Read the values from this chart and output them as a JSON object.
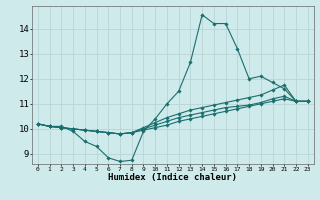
{
  "xlabel": "Humidex (Indice chaleur)",
  "bg_color": "#ceeaea",
  "grid_color": "#b8d4d4",
  "line_color": "#1a6e6e",
  "x_ticks": [
    0,
    1,
    2,
    3,
    4,
    5,
    6,
    7,
    8,
    9,
    10,
    11,
    12,
    13,
    14,
    15,
    16,
    17,
    18,
    19,
    20,
    21,
    22,
    23
  ],
  "y_ticks": [
    9,
    10,
    11,
    12,
    13,
    14
  ],
  "ylim": [
    8.6,
    14.9
  ],
  "xlim": [
    -0.5,
    23.5
  ],
  "curves": [
    {
      "x": [
        0,
        1,
        2,
        3,
        4,
        5,
        6,
        7,
        8,
        9,
        10,
        11,
        12,
        13,
        14,
        15,
        16,
        17,
        18,
        19,
        20,
        21,
        22,
        23
      ],
      "y": [
        10.2,
        10.1,
        10.1,
        9.9,
        9.5,
        9.3,
        8.85,
        8.7,
        8.75,
        9.9,
        10.4,
        11.0,
        11.5,
        12.65,
        14.55,
        14.2,
        14.2,
        13.2,
        12.0,
        12.1,
        11.85,
        11.6,
        11.1,
        11.1
      ]
    },
    {
      "x": [
        0,
        1,
        2,
        3,
        4,
        5,
        6,
        7,
        8,
        9,
        10,
        11,
        12,
        13,
        14,
        15,
        16,
        17,
        18,
        19,
        20,
        21,
        22,
        23
      ],
      "y": [
        10.2,
        10.1,
        10.05,
        10.0,
        9.95,
        9.9,
        9.85,
        9.8,
        9.85,
        10.05,
        10.25,
        10.45,
        10.6,
        10.75,
        10.85,
        10.95,
        11.05,
        11.15,
        11.25,
        11.35,
        11.55,
        11.75,
        11.1,
        11.1
      ]
    },
    {
      "x": [
        0,
        1,
        2,
        3,
        4,
        5,
        6,
        7,
        8,
        9,
        10,
        11,
        12,
        13,
        14,
        15,
        16,
        17,
        18,
        19,
        20,
        21,
        22,
        23
      ],
      "y": [
        10.2,
        10.1,
        10.05,
        10.0,
        9.95,
        9.9,
        9.85,
        9.8,
        9.85,
        10.0,
        10.15,
        10.3,
        10.45,
        10.55,
        10.65,
        10.75,
        10.85,
        10.9,
        10.95,
        11.05,
        11.2,
        11.3,
        11.1,
        11.1
      ]
    },
    {
      "x": [
        0,
        1,
        2,
        3,
        4,
        5,
        6,
        7,
        8,
        9,
        10,
        11,
        12,
        13,
        14,
        15,
        16,
        17,
        18,
        19,
        20,
        21,
        22,
        23
      ],
      "y": [
        10.2,
        10.1,
        10.05,
        10.0,
        9.95,
        9.9,
        9.85,
        9.8,
        9.85,
        9.95,
        10.05,
        10.15,
        10.3,
        10.4,
        10.5,
        10.6,
        10.7,
        10.8,
        10.9,
        11.0,
        11.1,
        11.2,
        11.1,
        11.1
      ]
    }
  ]
}
